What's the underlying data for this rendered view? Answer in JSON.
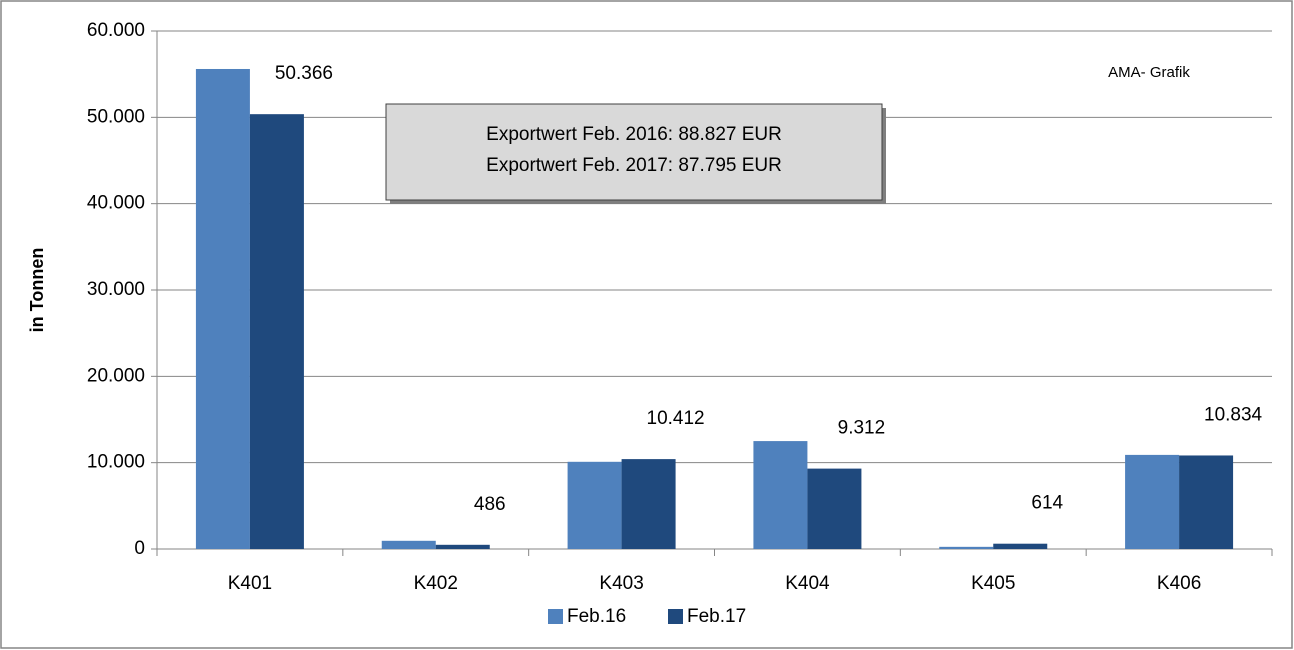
{
  "chart_data": {
    "type": "bar",
    "y_label": "in Tonnen",
    "categories": [
      "K401",
      "K402",
      "K403",
      "K404",
      "K405",
      "K406"
    ],
    "series": [
      {
        "name": "Feb.16",
        "color": "#4f81bd",
        "values": [
          55600,
          950,
          10100,
          12500,
          250,
          10900
        ]
      },
      {
        "name": "Feb.17",
        "color": "#1f497d",
        "values": [
          50366,
          486,
          10412,
          9312,
          614,
          10834
        ],
        "value_labels": [
          "50.366",
          "486",
          "10.412",
          "9.312",
          "614",
          "10.834"
        ]
      }
    ],
    "ylim": [
      0,
      60000
    ],
    "yticks": [
      0,
      {
        "value": 10000,
        "label": "10.000"
      },
      {
        "value": 20000,
        "label": "20.000"
      },
      {
        "value": 30000,
        "label": "30.000"
      },
      {
        "value": 40000,
        "label": "40.000"
      },
      {
        "value": 50000,
        "label": "50.000"
      },
      {
        "value": 60000,
        "label": "60.000"
      }
    ],
    "grid": true,
    "legend": "bottom",
    "annotations": [
      "AMA- Grafik",
      "Exportwert Feb. 2016: 88.827 EUR",
      "Exportwert  Feb. 2017: 87.795 EUR"
    ]
  }
}
